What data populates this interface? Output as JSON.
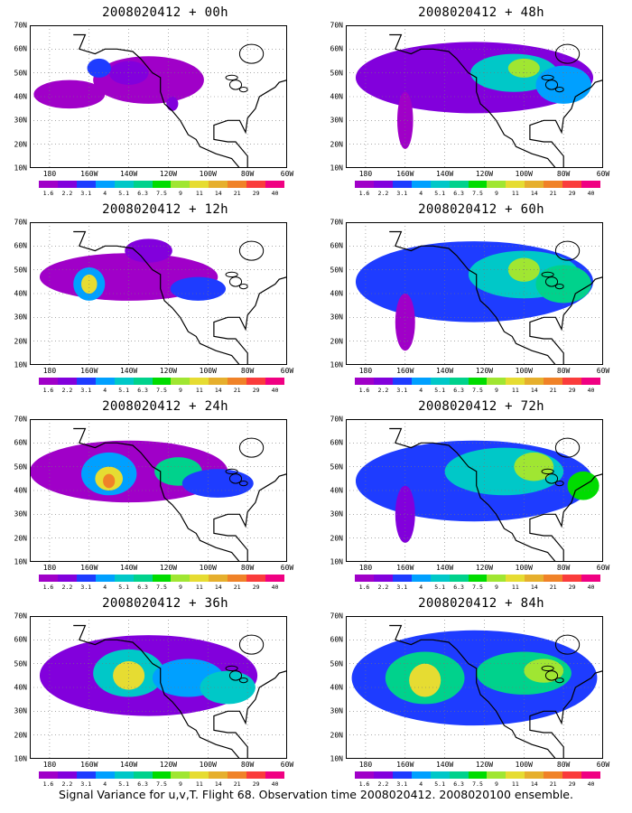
{
  "panels": [
    {
      "title": "2008020412 + 00h",
      "lead_hours": 0,
      "column": "left",
      "row": 1
    },
    {
      "title": "2008020412 + 48h",
      "lead_hours": 48,
      "column": "right",
      "row": 1
    },
    {
      "title": "2008020412 + 12h",
      "lead_hours": 12,
      "column": "left",
      "row": 2
    },
    {
      "title": "2008020412 + 60h",
      "lead_hours": 60,
      "column": "right",
      "row": 2
    },
    {
      "title": "2008020412 + 24h",
      "lead_hours": 24,
      "column": "left",
      "row": 3
    },
    {
      "title": "2008020412 + 72h",
      "lead_hours": 72,
      "column": "right",
      "row": 3
    },
    {
      "title": "2008020412 + 36h",
      "lead_hours": 36,
      "column": "left",
      "row": 4
    },
    {
      "title": "2008020412 + 84h",
      "lead_hours": 84,
      "column": "right",
      "row": 4
    }
  ],
  "axes": {
    "latitude_labels": [
      "70N",
      "60N",
      "50N",
      "40N",
      "30N",
      "20N",
      "10N"
    ],
    "longitude_labels": [
      "180",
      "160W",
      "140W",
      "120W",
      "100W",
      "80W",
      "60W"
    ],
    "lat_range": [
      10,
      70
    ],
    "lon_range": [
      -190,
      -60
    ],
    "grid": "dotted"
  },
  "colorbar": {
    "labels": [
      "1.6",
      "2.2",
      "3.1",
      "4",
      "5.1",
      "6.3",
      "7.5",
      "9",
      "11",
      "14",
      "21",
      "29",
      "40"
    ],
    "colors": [
      "#a000c8",
      "#8200dc",
      "#1e3cff",
      "#00a0ff",
      "#00c8c8",
      "#00d28c",
      "#00dc00",
      "#a0e632",
      "#e6dc32",
      "#e6af2d",
      "#f08228",
      "#fa3c3c",
      "#f00082"
    ]
  },
  "caption": "Signal Variance for u,v,T. Flight 68. Observation time 2008020412. 2008020100 ensemble."
}
